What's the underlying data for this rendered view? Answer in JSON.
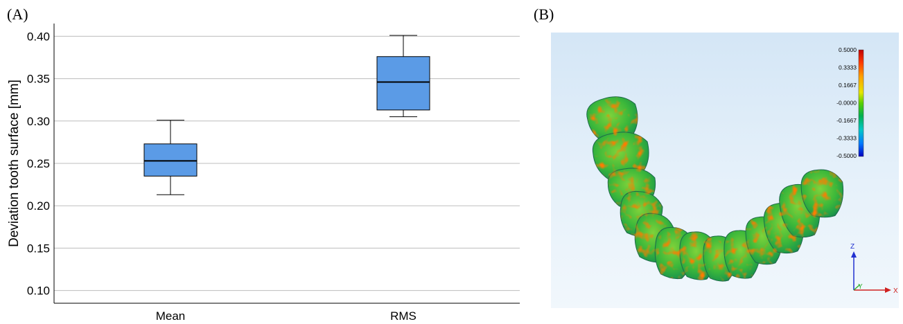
{
  "panels": {
    "a_label": "(A)",
    "b_label": "(B)"
  },
  "chart_data": {
    "type": "box",
    "title": "",
    "xlabel": "",
    "ylabel": "Deviation tooth surface [mm]",
    "ylim": [
      0.085,
      0.415
    ],
    "yticks": [
      0.1,
      0.15,
      0.2,
      0.25,
      0.3,
      0.35,
      0.4
    ],
    "ytick_labels": [
      "0.10",
      "0.15",
      "0.20",
      "0.25",
      "0.30",
      "0.35",
      "0.40"
    ],
    "grid": true,
    "categories": [
      "Mean",
      "RMS"
    ],
    "box_color": "#5b9be6",
    "boxes": [
      {
        "category": "Mean",
        "min": 0.213,
        "q1": 0.235,
        "median": 0.253,
        "q3": 0.273,
        "max": 0.301
      },
      {
        "category": "RMS",
        "min": 0.305,
        "q1": 0.313,
        "median": 0.346,
        "q3": 0.376,
        "max": 0.401
      }
    ]
  },
  "deviation_map": {
    "color_scale_labels": [
      "0.5000",
      "0.3333",
      "0.1667",
      "-0.0000",
      "-0.1667",
      "-0.3333",
      "-0.5000"
    ],
    "color_scale_colors": [
      "#c00000",
      "#ff3a00",
      "#ffa000",
      "#e6e600",
      "#58d000",
      "#00b050",
      "#00c8c8",
      "#0078ff",
      "#0000c0"
    ],
    "axis_labels": {
      "z": "Z",
      "x": "X",
      "y": "Y"
    }
  }
}
